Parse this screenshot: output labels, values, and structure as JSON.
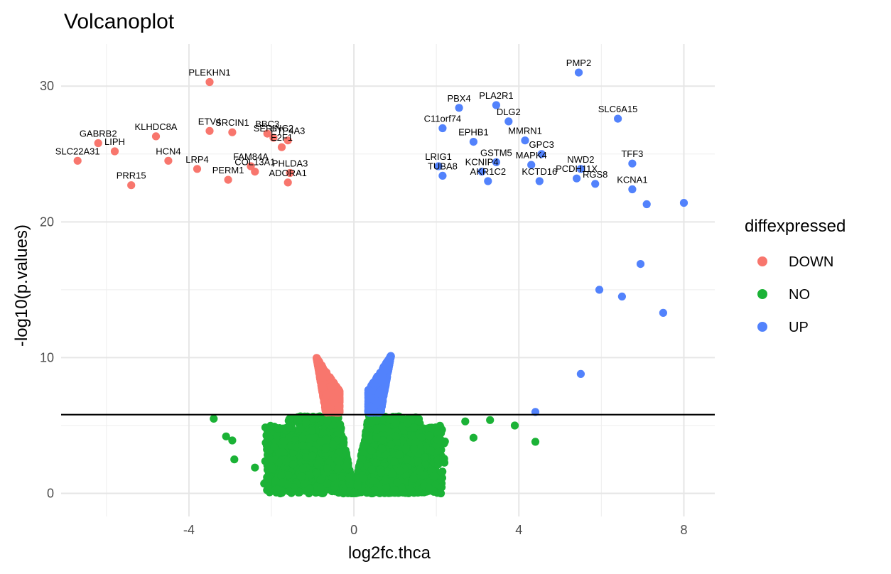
{
  "chart_data": {
    "type": "scatter",
    "title": "Volcanoplot",
    "xlabel": "log2fc.thca",
    "ylabel": "-log10(p.values)",
    "xlim": [
      -7.1,
      8.75
    ],
    "ylim": [
      -1.7,
      33.1
    ],
    "x_ticks": [
      -4,
      0,
      4,
      8
    ],
    "x_tick_labels": [
      "-4",
      "0",
      "4",
      "8"
    ],
    "y_ticks": [
      0,
      10,
      20,
      30
    ],
    "y_tick_labels": [
      "0",
      "10",
      "20",
      "30"
    ],
    "threshold_y": 5.8,
    "grid": true,
    "legend": {
      "title": "diffexpressed",
      "position": "right",
      "entries": [
        {
          "label": "DOWN",
          "color": "#F8766D"
        },
        {
          "label": "NO",
          "color": "#1BB236"
        },
        {
          "label": "UP",
          "color": "#5282FC"
        }
      ]
    },
    "labeled_points": [
      {
        "label": "PLEKHN1",
        "x": -3.5,
        "y": 30.3,
        "group": "DOWN"
      },
      {
        "label": "GABRB2",
        "x": -6.2,
        "y": 25.8,
        "group": "DOWN"
      },
      {
        "label": "LIPH",
        "x": -5.8,
        "y": 25.2,
        "group": "DOWN"
      },
      {
        "label": "SLC22A31",
        "x": -6.7,
        "y": 24.5,
        "group": "DOWN"
      },
      {
        "label": "KLHDC8A",
        "x": -4.8,
        "y": 26.3,
        "group": "DOWN"
      },
      {
        "label": "SRCIN1",
        "x": -2.95,
        "y": 26.6,
        "group": "DOWN"
      },
      {
        "label": "ETV4",
        "x": -3.5,
        "y": 26.7,
        "group": "DOWN"
      },
      {
        "label": "BBC3",
        "x": -2.1,
        "y": 26.5,
        "group": "DOWN"
      },
      {
        "label": "SERINC2",
        "x": -1.95,
        "y": 26.2,
        "group": "DOWN"
      },
      {
        "label": "PTP4A3",
        "x": -1.6,
        "y": 26.0,
        "group": "DOWN"
      },
      {
        "label": "E2F1",
        "x": -1.75,
        "y": 25.5,
        "group": "DOWN"
      },
      {
        "label": "HCN4",
        "x": -4.5,
        "y": 24.5,
        "group": "DOWN"
      },
      {
        "label": "FAM84A",
        "x": -2.5,
        "y": 24.1,
        "group": "DOWN"
      },
      {
        "label": "LRP4",
        "x": -3.8,
        "y": 23.9,
        "group": "DOWN"
      },
      {
        "label": "COL13A1",
        "x": -2.4,
        "y": 23.7,
        "group": "DOWN"
      },
      {
        "label": "PHLDA3",
        "x": -1.55,
        "y": 23.6,
        "group": "DOWN"
      },
      {
        "label": "PRR15",
        "x": -5.4,
        "y": 22.7,
        "group": "DOWN"
      },
      {
        "label": "PERM1",
        "x": -3.05,
        "y": 23.1,
        "group": "DOWN"
      },
      {
        "label": "ADORA1",
        "x": -1.6,
        "y": 22.9,
        "group": "DOWN"
      },
      {
        "label": "PMP2",
        "x": 5.45,
        "y": 31.0,
        "group": "UP"
      },
      {
        "label": "PBX4",
        "x": 2.55,
        "y": 28.4,
        "group": "UP"
      },
      {
        "label": "PLA2R1",
        "x": 3.45,
        "y": 28.6,
        "group": "UP"
      },
      {
        "label": "C11orf74",
        "x": 2.15,
        "y": 26.9,
        "group": "UP"
      },
      {
        "label": "DLG2",
        "x": 3.75,
        "y": 27.4,
        "group": "UP"
      },
      {
        "label": "EPHB1",
        "x": 2.9,
        "y": 25.9,
        "group": "UP"
      },
      {
        "label": "MMRN1",
        "x": 4.15,
        "y": 26.0,
        "group": "UP"
      },
      {
        "label": "SLC6A15",
        "x": 6.4,
        "y": 27.6,
        "group": "UP"
      },
      {
        "label": "GPC3",
        "x": 4.55,
        "y": 25.0,
        "group": "UP"
      },
      {
        "label": "GSTM5",
        "x": 3.45,
        "y": 24.4,
        "group": "UP"
      },
      {
        "label": "MAPK4",
        "x": 4.3,
        "y": 24.2,
        "group": "UP"
      },
      {
        "label": "TFF3",
        "x": 6.75,
        "y": 24.3,
        "group": "UP"
      },
      {
        "label": "LRIG1",
        "x": 2.05,
        "y": 24.1,
        "group": "UP"
      },
      {
        "label": "NWD2",
        "x": 5.5,
        "y": 23.9,
        "group": "UP"
      },
      {
        "label": "KCNIP4",
        "x": 3.1,
        "y": 23.7,
        "group": "UP"
      },
      {
        "label": "TUBA8",
        "x": 2.15,
        "y": 23.4,
        "group": "UP"
      },
      {
        "label": "PCDH11X",
        "x": 5.4,
        "y": 23.2,
        "group": "UP"
      },
      {
        "label": "AKR1C2",
        "x": 3.25,
        "y": 23.0,
        "group": "UP"
      },
      {
        "label": "KCTD16",
        "x": 4.5,
        "y": 23.0,
        "group": "UP"
      },
      {
        "label": "RGS8",
        "x": 5.85,
        "y": 22.8,
        "group": "UP"
      },
      {
        "label": "KCNA1",
        "x": 6.75,
        "y": 22.4,
        "group": "UP"
      }
    ]
  }
}
